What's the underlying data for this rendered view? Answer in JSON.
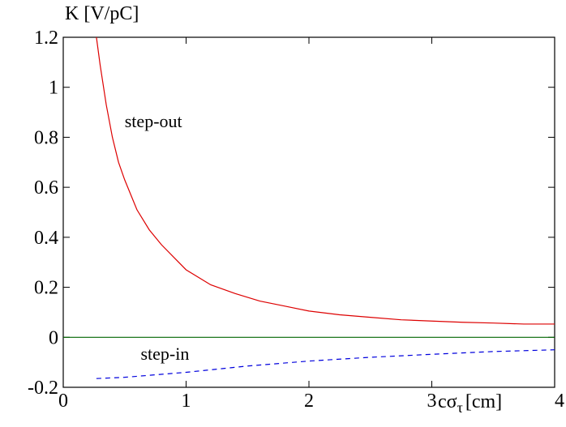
{
  "chart_data": {
    "type": "line",
    "ylabel": "K [V/pC]",
    "xlabel": {
      "prefix": "c",
      "symbol": "σ",
      "subscript": "τ",
      "suffix": "[cm]"
    },
    "xlim": [
      0,
      4
    ],
    "ylim": [
      -0.2,
      1.2
    ],
    "xticks": [
      0,
      1,
      2,
      3,
      4
    ],
    "xtick_labels": [
      "0",
      "1",
      "2",
      "3",
      "4"
    ],
    "yticks": [
      -0.2,
      0,
      0.2,
      0.4,
      0.6,
      0.8,
      1,
      1.2
    ],
    "ytick_labels": [
      "-0.2",
      "0",
      "0.2",
      "0.4",
      "0.6",
      "0.8",
      "1",
      "1.2"
    ],
    "grid": false,
    "series": [
      {
        "name": "step-out",
        "color": "#dd0000",
        "style": "solid",
        "x": [
          0.27,
          0.3,
          0.35,
          0.4,
          0.45,
          0.5,
          0.6,
          0.7,
          0.8,
          1.0,
          1.2,
          1.4,
          1.6,
          1.8,
          2.0,
          2.25,
          2.5,
          2.75,
          3.0,
          3.25,
          3.5,
          3.75,
          4.0
        ],
        "y": [
          1.2,
          1.09,
          0.93,
          0.8,
          0.7,
          0.63,
          0.51,
          0.43,
          0.37,
          0.27,
          0.21,
          0.175,
          0.145,
          0.125,
          0.105,
          0.09,
          0.08,
          0.07,
          0.065,
          0.06,
          0.057,
          0.053,
          0.053
        ]
      },
      {
        "name": "step-in",
        "color": "#0000dd",
        "style": "dashed",
        "x": [
          0.27,
          0.5,
          1.0,
          1.5,
          2.0,
          2.5,
          3.0,
          3.5,
          4.0
        ],
        "y": [
          -0.165,
          -0.16,
          -0.14,
          -0.115,
          -0.095,
          -0.08,
          -0.068,
          -0.057,
          -0.05
        ]
      },
      {
        "name": "",
        "color": "#006600",
        "style": "solid",
        "x": [
          0,
          4
        ],
        "y": [
          0,
          0
        ]
      }
    ],
    "annotations": [
      {
        "text": "step-out",
        "x": 0.5,
        "y": 0.84
      },
      {
        "text": "step-in",
        "x": 0.63,
        "y": -0.09
      }
    ]
  }
}
